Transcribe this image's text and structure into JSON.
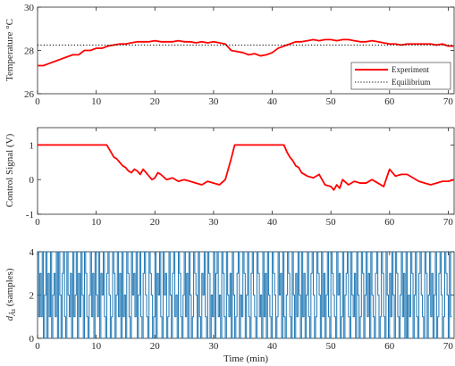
{
  "chart_data": [
    {
      "type": "line",
      "ylabel": "Temperature °C",
      "xlim": [
        0,
        71
      ],
      "ylim": [
        26,
        30
      ],
      "xticks": [
        "0",
        "10",
        "20",
        "30",
        "40",
        "50",
        "60",
        "70"
      ],
      "yticks": [
        "26",
        "28",
        "30"
      ],
      "grid": false,
      "legend_position": "bottom-right",
      "series": [
        {
          "name": "Experiment",
          "color": "#ff0000",
          "style": "solid",
          "x": [
            0,
            1,
            2,
            3,
            4,
            5,
            6,
            7,
            8,
            9,
            10,
            11,
            12,
            13,
            14,
            15,
            16,
            17,
            18,
            19,
            20,
            21,
            22,
            23,
            24,
            25,
            26,
            27,
            28,
            29,
            30,
            31,
            32,
            33,
            34,
            35,
            36,
            37,
            38,
            39,
            40,
            41,
            42,
            43,
            44,
            45,
            46,
            47,
            48,
            49,
            50,
            51,
            52,
            53,
            54,
            55,
            56,
            57,
            58,
            59,
            60,
            61,
            62,
            63,
            64,
            65,
            66,
            67,
            68,
            69,
            70,
            71
          ],
          "y": [
            27.3,
            27.3,
            27.4,
            27.5,
            27.6,
            27.7,
            27.8,
            27.8,
            28.0,
            28.0,
            28.1,
            28.1,
            28.2,
            28.25,
            28.3,
            28.3,
            28.35,
            28.4,
            28.4,
            28.4,
            28.45,
            28.4,
            28.4,
            28.4,
            28.45,
            28.4,
            28.4,
            28.35,
            28.4,
            28.35,
            28.4,
            28.35,
            28.3,
            28.0,
            27.95,
            27.9,
            27.8,
            27.85,
            27.75,
            27.8,
            27.9,
            28.1,
            28.2,
            28.3,
            28.4,
            28.4,
            28.45,
            28.5,
            28.45,
            28.5,
            28.5,
            28.45,
            28.5,
            28.5,
            28.45,
            28.4,
            28.4,
            28.45,
            28.4,
            28.35,
            28.3,
            28.3,
            28.25,
            28.3,
            28.3,
            28.3,
            28.3,
            28.3,
            28.25,
            28.3,
            28.2,
            28.2
          ]
        },
        {
          "name": "Equilibrium",
          "color": "#000000",
          "style": "dotted",
          "x": [
            0,
            71
          ],
          "y": [
            28.25,
            28.25
          ]
        }
      ]
    },
    {
      "type": "line",
      "ylabel": "Control Signal (V)",
      "xlim": [
        0,
        71
      ],
      "ylim": [
        -1,
        1.5
      ],
      "xticks": [
        "0",
        "10",
        "20",
        "30",
        "40",
        "50",
        "60",
        "70"
      ],
      "yticks": [
        "-1",
        "0",
        "1"
      ],
      "grid": false,
      "series": [
        {
          "color": "#ff0000",
          "x": [
            0,
            11.8,
            12.5,
            13,
            13.5,
            14,
            14.5,
            15,
            15.5,
            16,
            16.5,
            17,
            17.5,
            18,
            18.5,
            19,
            19.5,
            20,
            20.5,
            21,
            22,
            23,
            24,
            25,
            26,
            27,
            28,
            29,
            30,
            31,
            32,
            33,
            33.6,
            42,
            42.5,
            43,
            43.5,
            44,
            44.5,
            45,
            46,
            47,
            48,
            49,
            50,
            50.5,
            51,
            51.5,
            52,
            53,
            54,
            55,
            56,
            57,
            58,
            59,
            60,
            61,
            62,
            63,
            64,
            65,
            66,
            67,
            68,
            69,
            70,
            71
          ],
          "y": [
            1,
            1,
            0.8,
            0.65,
            0.6,
            0.5,
            0.4,
            0.35,
            0.25,
            0.2,
            0.3,
            0.25,
            0.15,
            0.3,
            0.2,
            0.1,
            0.0,
            0.05,
            0.2,
            0.15,
            0.0,
            0.05,
            -0.05,
            0.0,
            -0.05,
            -0.1,
            -0.15,
            -0.05,
            -0.1,
            -0.15,
            0.0,
            0.6,
            1,
            1,
            0.8,
            0.65,
            0.55,
            0.4,
            0.35,
            0.2,
            0.1,
            0.05,
            0.15,
            -0.15,
            -0.2,
            -0.3,
            -0.15,
            -0.25,
            0.0,
            -0.15,
            -0.05,
            -0.1,
            -0.1,
            0.0,
            -0.1,
            -0.2,
            0.3,
            0.1,
            0.15,
            0.15,
            0.05,
            -0.05,
            -0.1,
            -0.15,
            -0.1,
            -0.05,
            -0.05,
            0.0
          ]
        }
      ]
    },
    {
      "type": "line",
      "ylabel": "d_{Âs} (samples)",
      "ylabel_main": "d",
      "ylabel_sub": "Âs",
      "ylabel_rest": " (samples)",
      "xlabel": "Time (min)",
      "xlim": [
        0,
        71
      ],
      "ylim": [
        0,
        4
      ],
      "xticks": [
        "0",
        "10",
        "20",
        "30",
        "40",
        "50",
        "60",
        "70"
      ],
      "yticks": [
        "0",
        "2",
        "4"
      ],
      "grid": false,
      "series": [
        {
          "color": "#1f77b4",
          "style": "step",
          "x_step": 0.2,
          "y": [
            4,
            1,
            3,
            1,
            4,
            0,
            2,
            4,
            0,
            3,
            1,
            4,
            0,
            2,
            3,
            1,
            4,
            0,
            4,
            2,
            0,
            3,
            4,
            1,
            0,
            4,
            2,
            1,
            3,
            0,
            4,
            1,
            2,
            4,
            0,
            3,
            1,
            4,
            2,
            0,
            4,
            3,
            1,
            0,
            2,
            4,
            1,
            3,
            0,
            4,
            2,
            1,
            4,
            0,
            3,
            2,
            4,
            1,
            0,
            3,
            4,
            2,
            0,
            1,
            4,
            3,
            0,
            2,
            4,
            1,
            3,
            0,
            4,
            1,
            2,
            0,
            4,
            3,
            1,
            0,
            4,
            2,
            3,
            1,
            4,
            0,
            2,
            4,
            1,
            0,
            3,
            4,
            2,
            1,
            0,
            4,
            3,
            2,
            0,
            1,
            4,
            0,
            3,
            2,
            4,
            1,
            0,
            4,
            2,
            3,
            0,
            1,
            4,
            2,
            0,
            3,
            4,
            1,
            2,
            0,
            4,
            3,
            1,
            0,
            2,
            4,
            1,
            3,
            0,
            4,
            2,
            0,
            1,
            4,
            3,
            2,
            0,
            4,
            1,
            0,
            3,
            2,
            4,
            1,
            0,
            4,
            3,
            0,
            2,
            1,
            4,
            0,
            3,
            4,
            1,
            2,
            0,
            4,
            3,
            1,
            0,
            4,
            2,
            1,
            3,
            0,
            4,
            2,
            0,
            1,
            3,
            4,
            0,
            2,
            1,
            4,
            3,
            0,
            2,
            4,
            1,
            0,
            3,
            4,
            2,
            1,
            0,
            4,
            3,
            1,
            2,
            0,
            4,
            1,
            3,
            0,
            4,
            2,
            1,
            0,
            4,
            3,
            2,
            0,
            1,
            4,
            2,
            3,
            0,
            4,
            1,
            0,
            2,
            4,
            3,
            1,
            0,
            4,
            2,
            0,
            3,
            1,
            4,
            2,
            0,
            4,
            1,
            3,
            0,
            2,
            4,
            1,
            0,
            3,
            4,
            2,
            0,
            1,
            4,
            3,
            2,
            0,
            4,
            1,
            3,
            0,
            2,
            4,
            1,
            0,
            4,
            3,
            2,
            1,
            0,
            4,
            2,
            3,
            0,
            1,
            4,
            0,
            2,
            3,
            4,
            1,
            0,
            4,
            2,
            1,
            3,
            0,
            4,
            2,
            0,
            1,
            4,
            3,
            0,
            2,
            4,
            1,
            3,
            0,
            4,
            2,
            1,
            0,
            3,
            4,
            2,
            0,
            1,
            4,
            3,
            1,
            0,
            4,
            2,
            0,
            3,
            1,
            4,
            2,
            0,
            4,
            3,
            1,
            0,
            2,
            4,
            1,
            3,
            0,
            4,
            0,
            2,
            1,
            4,
            3,
            0,
            2,
            4,
            1,
            0,
            3,
            4,
            2,
            1,
            0,
            4,
            3,
            0,
            2,
            4,
            1,
            3,
            0,
            2,
            4,
            0,
            1,
            3,
            4,
            2,
            0,
            1,
            4,
            3,
            2,
            0,
            4,
            1
          ]
        }
      ]
    }
  ]
}
